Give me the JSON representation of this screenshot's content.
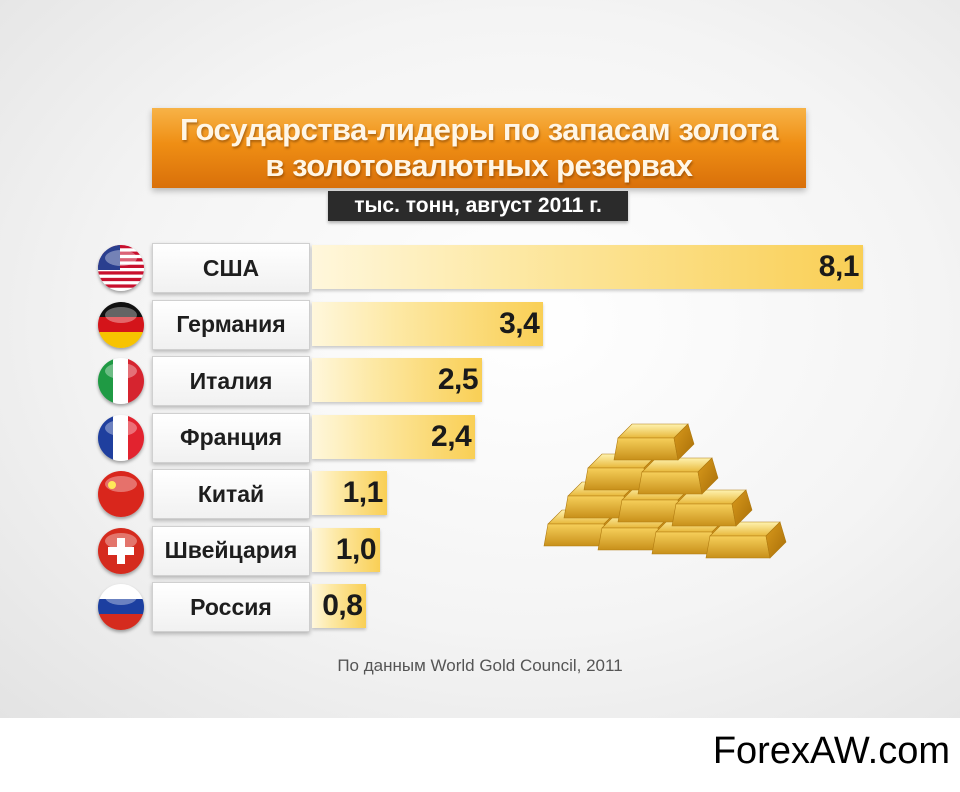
{
  "chart_data": {
    "type": "bar",
    "title": "Государства-лидеры по запасам золота\nв золотовалютных резервах",
    "subtitle": "тыс. тонн, август 2011 г.",
    "categories": [
      "США",
      "Германия",
      "Италия",
      "Франция",
      "Китай",
      "Швейцария",
      "Россия"
    ],
    "values": [
      8.1,
      3.4,
      2.5,
      2.4,
      1.1,
      1.0,
      0.8
    ],
    "value_labels": [
      "8,1",
      "3,4",
      "2,5",
      "2,4",
      "1,1",
      "1,0",
      "0,8"
    ],
    "flags": [
      "us-flag-icon",
      "germany-flag-icon",
      "italy-flag-icon",
      "france-flag-icon",
      "china-flag-icon",
      "switzerland-flag-icon",
      "russia-flag-icon"
    ],
    "bar_color": "#f9cf55",
    "orientation": "horizontal",
    "source": "По данным World Gold Council, 2011"
  },
  "watermark": "ForexAW.com",
  "colors": {
    "banner": "#ef8e14",
    "subtitle_bg": "#2b2b2b",
    "bar": "#f9cf55"
  }
}
